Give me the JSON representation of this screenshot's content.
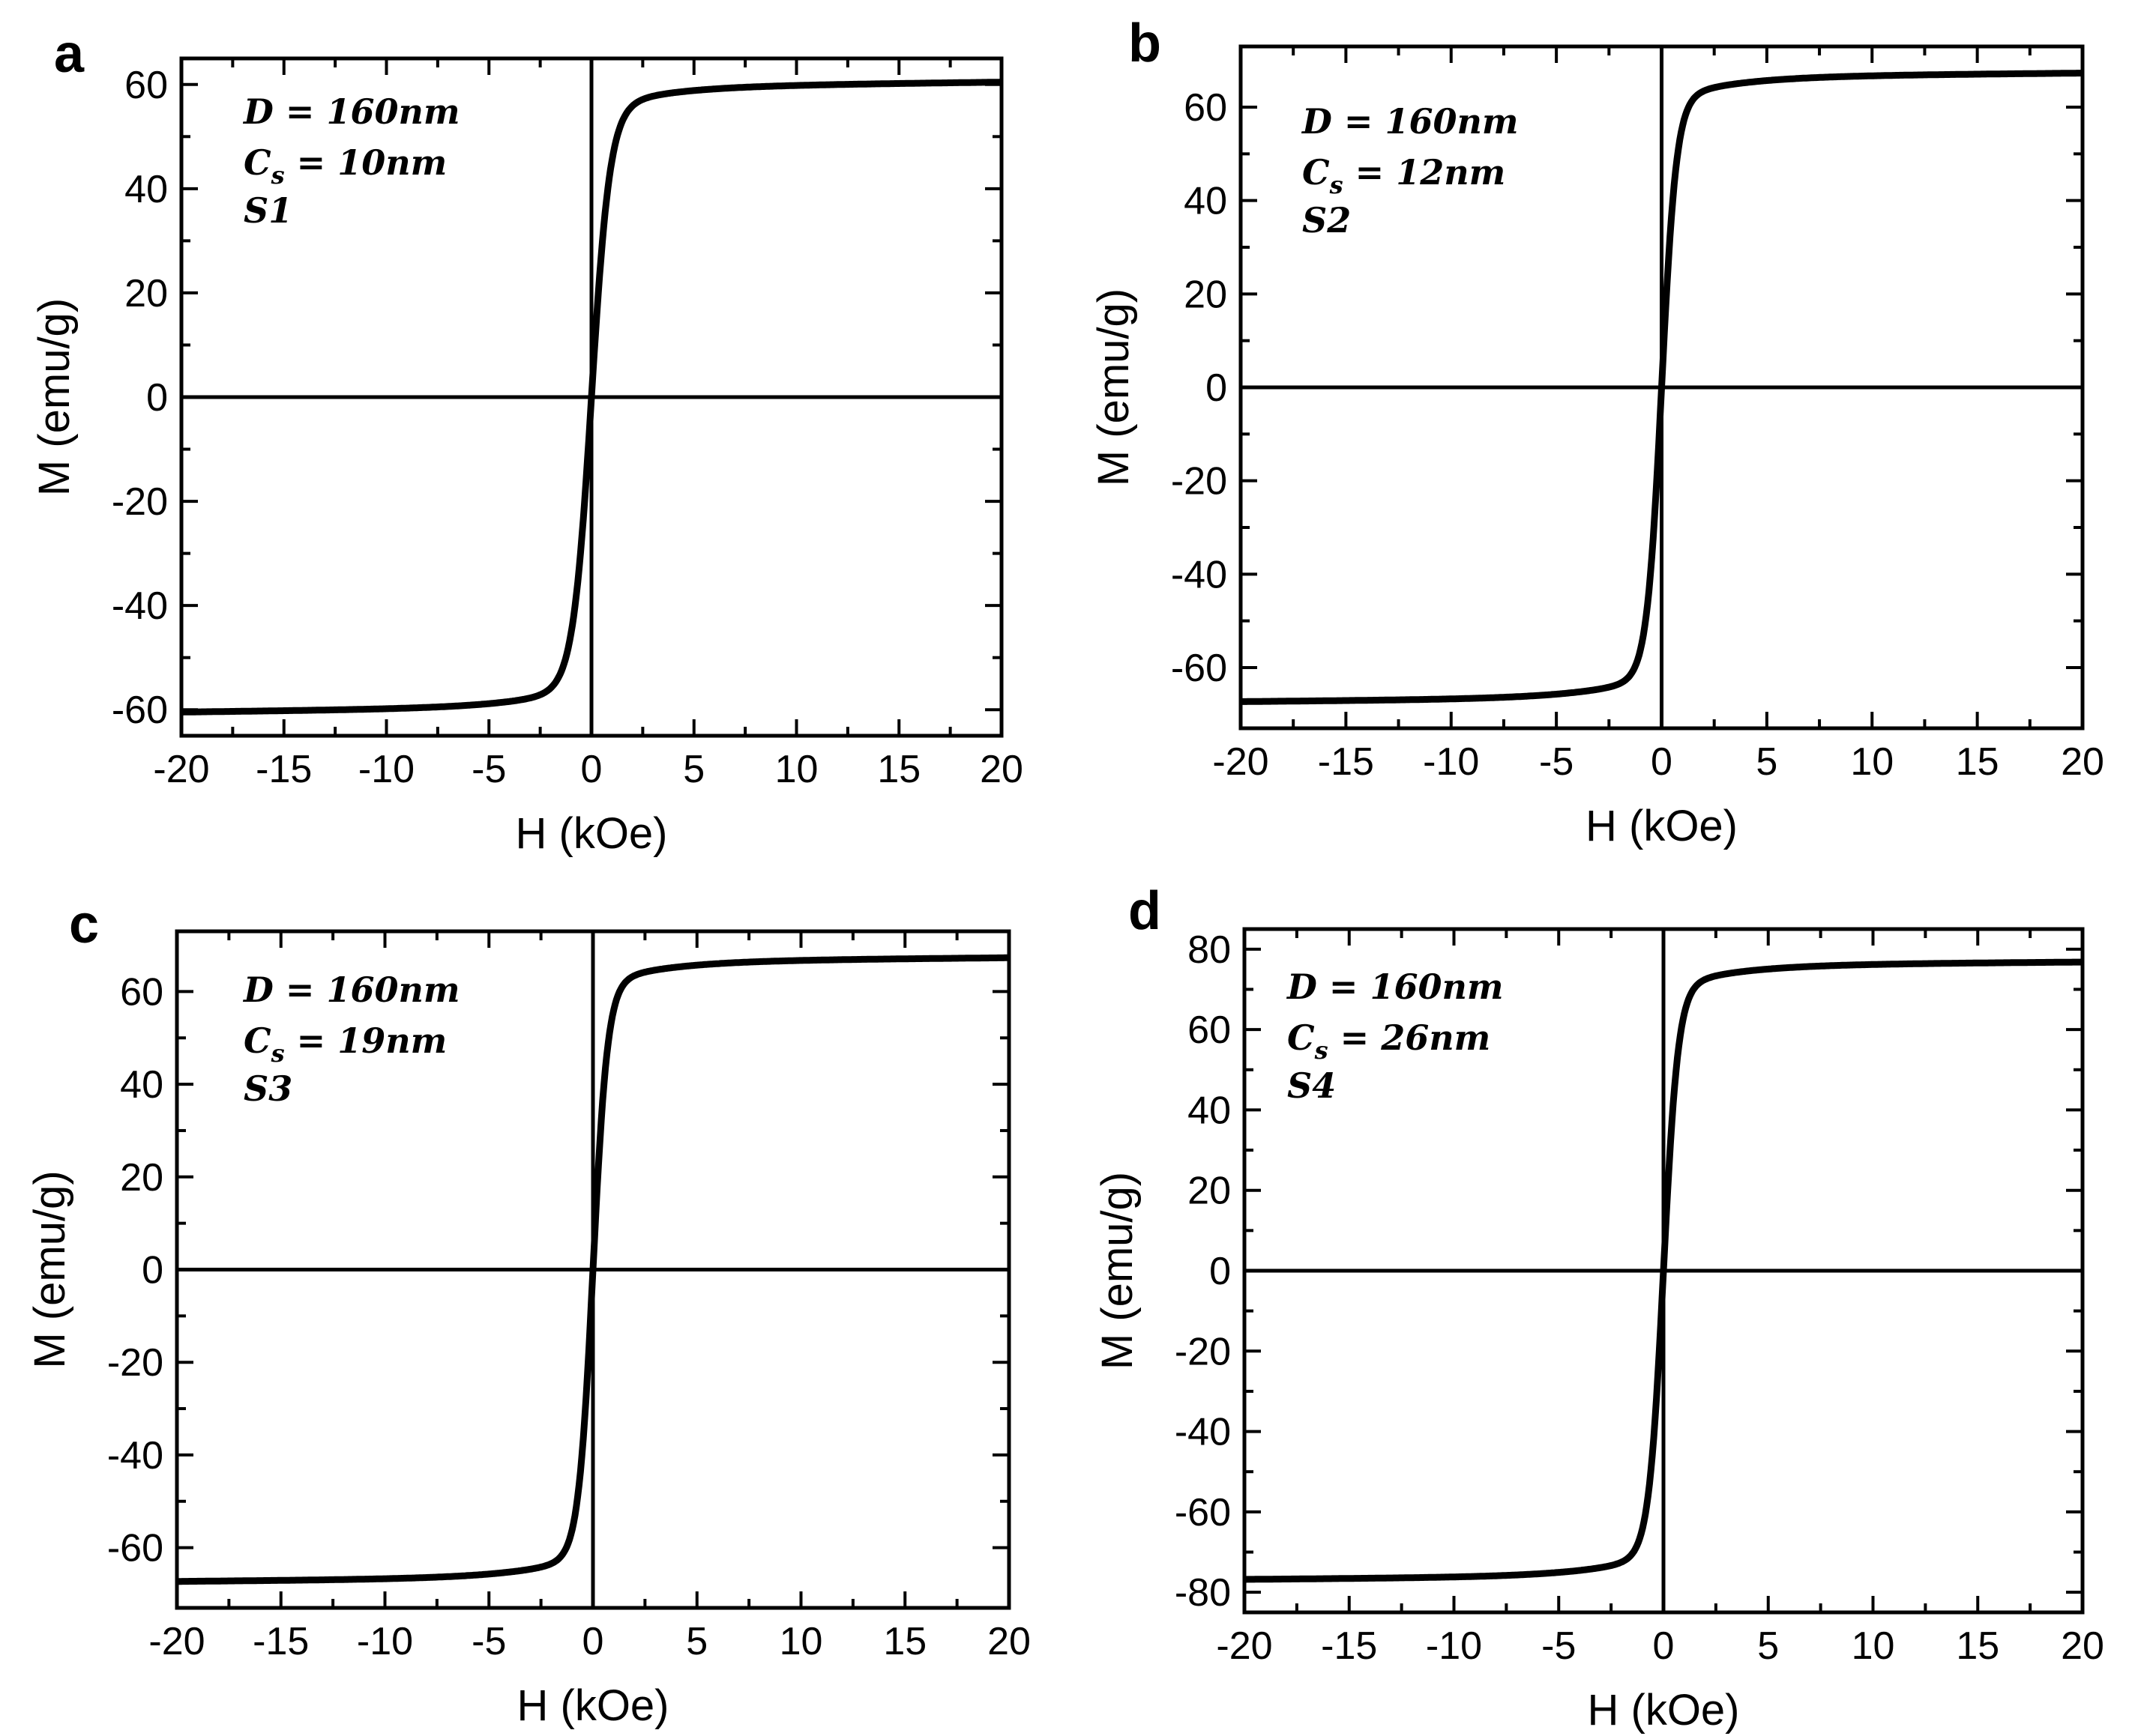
{
  "chart_data": [
    {
      "type": "line",
      "panel": "a",
      "xlabel": "H (kOe)",
      "ylabel": "M (emu/g)",
      "xlim": [
        -20,
        20
      ],
      "ylim": [
        -65,
        65
      ],
      "xticks": [
        -20,
        -15,
        -10,
        -5,
        0,
        5,
        10,
        15,
        20
      ],
      "yticks": [
        -60,
        -40,
        -20,
        0,
        20,
        40,
        60
      ],
      "annotations": [
        "D = 160nm",
        "C_s = 10nm",
        "S1"
      ],
      "annotation_parts": {
        "d_label": "D",
        "eq": " = ",
        "d_value": "160nm",
        "c_label": "C",
        "c_sub": "s",
        "c_value": "10nm",
        "sample": "S1"
      },
      "series": [
        {
          "name": "S1",
          "ms": 59.5,
          "hk": 0.9,
          "slope": 0.12
        }
      ]
    },
    {
      "type": "line",
      "panel": "b",
      "xlabel": "H (kOe)",
      "ylabel": "M (emu/g)",
      "xlim": [
        -20,
        20
      ],
      "ylim": [
        -73,
        73
      ],
      "xticks": [
        -20,
        -15,
        -10,
        -5,
        0,
        5,
        10,
        15,
        20
      ],
      "yticks": [
        -60,
        -40,
        -20,
        0,
        20,
        40,
        60
      ],
      "annotations": [
        "D = 160nm",
        "C_s = 12nm",
        "S2"
      ],
      "annotation_parts": {
        "d_label": "D",
        "eq": " = ",
        "d_value": "160nm",
        "c_label": "C",
        "c_sub": "s",
        "c_value": "12nm",
        "sample": "S2"
      },
      "series": [
        {
          "name": "S2",
          "ms": 66.5,
          "hk": 0.7,
          "slope": 0.1
        }
      ]
    },
    {
      "type": "line",
      "panel": "c",
      "xlabel": "H (kOe)",
      "ylabel": "M (emu/g)",
      "xlim": [
        -20,
        20
      ],
      "ylim": [
        -73,
        73
      ],
      "xticks": [
        -20,
        -15,
        -10,
        -5,
        0,
        5,
        10,
        15,
        20
      ],
      "yticks": [
        -60,
        -40,
        -20,
        0,
        20,
        40,
        60
      ],
      "annotations": [
        "D = 160nm",
        "C_s = 19nm",
        "S3"
      ],
      "annotation_parts": {
        "d_label": "D",
        "eq": " = ",
        "d_value": "160nm",
        "c_label": "C",
        "c_sub": "s",
        "c_value": "19nm",
        "sample": "S3"
      },
      "series": [
        {
          "name": "S3",
          "ms": 66.5,
          "hk": 0.7,
          "slope": 0.1
        }
      ]
    },
    {
      "type": "line",
      "panel": "d",
      "xlabel": "H (kOe)",
      "ylabel": "M (emu/g)",
      "xlim": [
        -20,
        20
      ],
      "ylim": [
        -85,
        85
      ],
      "xticks": [
        -20,
        -15,
        -10,
        -5,
        0,
        5,
        10,
        15,
        20
      ],
      "yticks": [
        -80,
        -60,
        -40,
        -20,
        0,
        20,
        40,
        60,
        80
      ],
      "annotations": [
        "D = 160nm",
        "C_s = 26nm",
        "S4"
      ],
      "annotation_parts": {
        "d_label": "D",
        "eq": " = ",
        "d_value": "160nm",
        "c_label": "C",
        "c_sub": "s",
        "c_value": "26nm",
        "sample": "S4"
      },
      "series": [
        {
          "name": "S4",
          "ms": 76.0,
          "hk": 0.7,
          "slope": 0.1
        }
      ]
    }
  ]
}
